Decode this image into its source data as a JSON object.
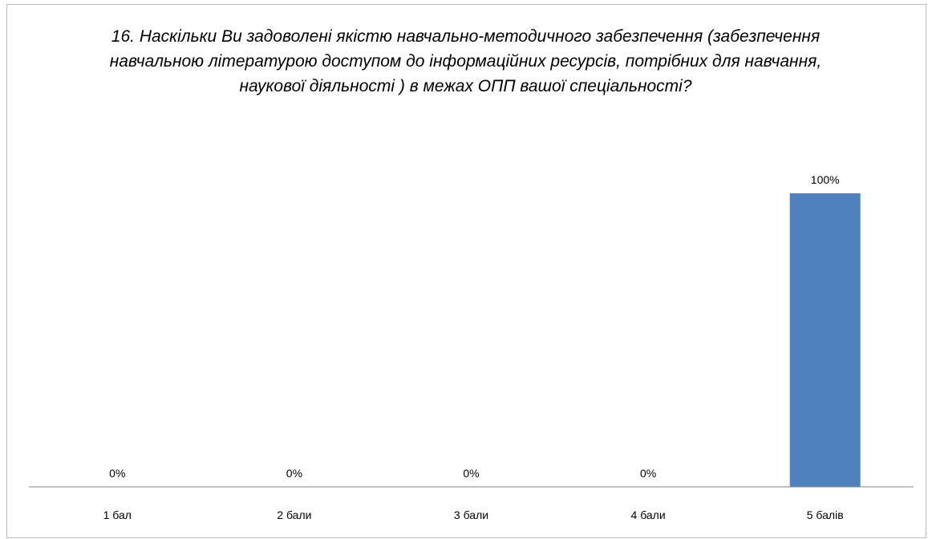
{
  "chart_data": {
    "type": "bar",
    "title": "16. Наскільки Ви задоволені якістю навчально-методичного забезпечення (забезпечення навчальною літературою доступом до інформаційних ресурсів, потрібних для навчання, наукової діяльності ) в межах ОПП вашої спеціальності?",
    "categories": [
      "1 бал",
      "2 бали",
      "3 бали",
      "4 бали",
      "5 балів"
    ],
    "values": [
      0,
      0,
      0,
      0,
      100
    ],
    "data_labels": [
      "0%",
      "0%",
      "0%",
      "0%",
      "100%"
    ],
    "unit": "%",
    "ylim": [
      0,
      100
    ],
    "xlabel": "",
    "ylabel": "",
    "grid": false,
    "legend": "none",
    "bar_color": "#4f81bd",
    "axis_color": "#868686"
  }
}
